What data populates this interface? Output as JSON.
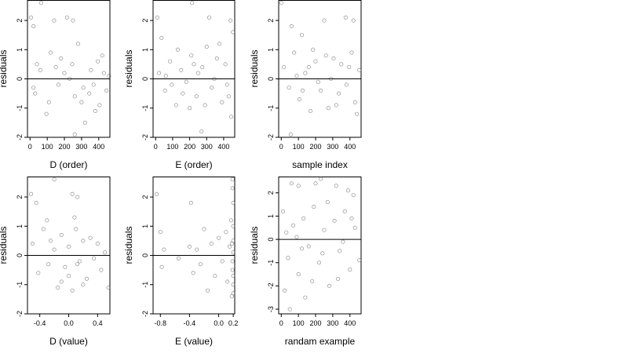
{
  "chart_data": [
    {
      "type": "scatter",
      "xlabel": "D (order)",
      "ylabel": "residuals",
      "xlim": [
        -15,
        465
      ],
      "ylim": [
        -2,
        2.7
      ],
      "xticks": [
        0,
        100,
        200,
        300,
        400
      ],
      "xtick_labels": [
        "0",
        "100",
        "200",
        "300",
        "400"
      ],
      "yticks": [
        -2,
        -1,
        0,
        1,
        2
      ],
      "ytick_labels": [
        "-2",
        "-1",
        "0",
        "1",
        "2"
      ],
      "hline": 0,
      "points": [
        [
          5,
          2.1
        ],
        [
          20,
          1.8
        ],
        [
          65,
          2.6
        ],
        [
          140,
          2.0
        ],
        [
          215,
          2.1
        ],
        [
          250,
          2.0
        ],
        [
          20,
          -0.3
        ],
        [
          60,
          0.3
        ],
        [
          95,
          -1.2
        ],
        [
          120,
          0.9
        ],
        [
          165,
          -0.2
        ],
        [
          200,
          0.2
        ],
        [
          260,
          -0.6
        ],
        [
          280,
          1.2
        ],
        [
          300,
          -0.8
        ],
        [
          320,
          -1.5
        ],
        [
          345,
          -0.5
        ],
        [
          370,
          -0.2
        ],
        [
          395,
          0.6
        ],
        [
          420,
          0.8
        ],
        [
          445,
          -0.4
        ],
        [
          460,
          0.1
        ],
        [
          30,
          -0.5
        ],
        [
          150,
          0.4
        ],
        [
          230,
          0.0
        ],
        [
          310,
          -0.3
        ],
        [
          380,
          -1.1
        ],
        [
          430,
          0.2
        ],
        [
          260,
          -1.9
        ],
        [
          180,
          0.7
        ],
        [
          110,
          -0.8
        ],
        [
          40,
          0.5
        ],
        [
          355,
          0.3
        ],
        [
          405,
          -0.9
        ],
        [
          245,
          0.5
        ]
      ]
    },
    {
      "type": "scatter",
      "xlabel": "E (order)",
      "ylabel": "residuals",
      "xlim": [
        -15,
        465
      ],
      "ylim": [
        -2,
        2.7
      ],
      "xticks": [
        0,
        100,
        200,
        300,
        400
      ],
      "xtick_labels": [
        "0",
        "100",
        "200",
        "300",
        "400"
      ],
      "yticks": [
        -2,
        -1,
        0,
        1,
        2
      ],
      "ytick_labels": [
        "-2",
        "-1",
        "0",
        "1",
        "2"
      ],
      "hline": 0,
      "points": [
        [
          10,
          2.1
        ],
        [
          35,
          1.4
        ],
        [
          215,
          2.6
        ],
        [
          315,
          2.1
        ],
        [
          440,
          2.0
        ],
        [
          455,
          1.6
        ],
        [
          20,
          0.2
        ],
        [
          55,
          -0.4
        ],
        [
          85,
          0.6
        ],
        [
          120,
          -0.9
        ],
        [
          150,
          0.3
        ],
        [
          180,
          -0.1
        ],
        [
          210,
          0.8
        ],
        [
          240,
          -0.6
        ],
        [
          275,
          0.4
        ],
        [
          300,
          1.1
        ],
        [
          330,
          -0.3
        ],
        [
          360,
          0.7
        ],
        [
          390,
          -0.8
        ],
        [
          420,
          -0.2
        ],
        [
          445,
          -1.3
        ],
        [
          270,
          -1.8
        ],
        [
          60,
          0.1
        ],
        [
          130,
          1.0
        ],
        [
          200,
          -1.0
        ],
        [
          250,
          0.2
        ],
        [
          345,
          0.0
        ],
        [
          410,
          0.5
        ],
        [
          160,
          -0.5
        ],
        [
          95,
          -0.2
        ],
        [
          375,
          1.2
        ],
        [
          225,
          0.5
        ],
        [
          290,
          -0.9
        ],
        [
          430,
          -0.6
        ]
      ]
    },
    {
      "type": "scatter",
      "xlabel": "sample index",
      "ylabel": "residuals",
      "xlim": [
        -15,
        465
      ],
      "ylim": [
        -2,
        2.7
      ],
      "xticks": [
        0,
        100,
        200,
        300,
        400
      ],
      "xtick_labels": [
        "0",
        "100",
        "200",
        "300",
        "400"
      ],
      "yticks": [
        -2,
        -1,
        0,
        1,
        2
      ],
      "ytick_labels": [
        "-2",
        "-1",
        "0",
        "1",
        "2"
      ],
      "hline": 0,
      "points": [
        [
          0,
          2.6
        ],
        [
          60,
          1.8
        ],
        [
          120,
          1.5
        ],
        [
          250,
          2.0
        ],
        [
          375,
          2.1
        ],
        [
          420,
          2.0
        ],
        [
          15,
          0.4
        ],
        [
          45,
          -0.3
        ],
        [
          75,
          0.9
        ],
        [
          105,
          -0.7
        ],
        [
          140,
          0.2
        ],
        [
          170,
          -1.1
        ],
        [
          200,
          0.6
        ],
        [
          230,
          -0.4
        ],
        [
          260,
          0.8
        ],
        [
          290,
          0.0
        ],
        [
          320,
          -0.9
        ],
        [
          350,
          0.5
        ],
        [
          380,
          -0.2
        ],
        [
          410,
          0.9
        ],
        [
          440,
          -1.2
        ],
        [
          455,
          0.3
        ],
        [
          55,
          -1.9
        ],
        [
          90,
          0.1
        ],
        [
          185,
          1.0
        ],
        [
          215,
          -0.1
        ],
        [
          305,
          0.7
        ],
        [
          335,
          -0.5
        ],
        [
          395,
          0.4
        ],
        [
          430,
          -0.8
        ],
        [
          125,
          -0.4
        ],
        [
          275,
          -1.0
        ],
        [
          160,
          0.4
        ]
      ]
    },
    {
      "type": "scatter",
      "xlabel": "D (value)",
      "ylabel": "residuals",
      "xlim": [
        -0.57,
        0.57
      ],
      "ylim": [
        -2,
        2.7
      ],
      "xticks": [
        -0.4,
        0.0,
        0.4
      ],
      "xtick_labels": [
        "-0.4",
        "0.0",
        "0.4"
      ],
      "yticks": [
        -2,
        -1,
        0,
        1,
        2
      ],
      "ytick_labels": [
        "-2",
        "-1",
        "0",
        "1",
        "2"
      ],
      "hline": 0,
      "points": [
        [
          -0.52,
          2.1
        ],
        [
          -0.45,
          1.8
        ],
        [
          -0.2,
          2.6
        ],
        [
          0.05,
          2.1
        ],
        [
          0.12,
          2.0
        ],
        [
          -0.5,
          0.4
        ],
        [
          -0.42,
          -0.6
        ],
        [
          -0.35,
          0.9
        ],
        [
          -0.28,
          -0.3
        ],
        [
          -0.2,
          0.2
        ],
        [
          -0.15,
          -1.1
        ],
        [
          -0.1,
          0.7
        ],
        [
          -0.05,
          -0.4
        ],
        [
          0.0,
          0.3
        ],
        [
          0.05,
          -1.2
        ],
        [
          0.1,
          0.9
        ],
        [
          0.15,
          -0.2
        ],
        [
          0.2,
          0.5
        ],
        [
          0.25,
          -0.8
        ],
        [
          0.3,
          0.6
        ],
        [
          0.35,
          -0.1
        ],
        [
          0.4,
          0.4
        ],
        [
          0.45,
          -0.5
        ],
        [
          0.5,
          0.1
        ],
        [
          0.55,
          -1.1
        ],
        [
          -0.3,
          1.2
        ],
        [
          -0.1,
          -0.9
        ],
        [
          0.08,
          1.3
        ],
        [
          0.2,
          -1.0
        ],
        [
          -0.25,
          0.5
        ],
        [
          0.0,
          -0.7
        ],
        [
          0.12,
          -0.3
        ]
      ]
    },
    {
      "type": "scatter",
      "xlabel": "E (value)",
      "ylabel": "residuals",
      "xlim": [
        -0.9,
        0.22
      ],
      "ylim": [
        -2,
        2.7
      ],
      "xticks": [
        -0.8,
        -0.4,
        0.0,
        0.2
      ],
      "xtick_labels": [
        "-0.8",
        "-0.4",
        "0.0",
        "0.2"
      ],
      "yticks": [
        -2,
        -1,
        0,
        1,
        2
      ],
      "ytick_labels": [
        "-2",
        "-1",
        "0",
        "1",
        "2"
      ],
      "hline": 0,
      "points": [
        [
          -0.85,
          2.1
        ],
        [
          -0.8,
          0.8
        ],
        [
          -0.78,
          -0.4
        ],
        [
          -0.75,
          0.2
        ],
        [
          -0.55,
          -0.1
        ],
        [
          -0.38,
          1.8
        ],
        [
          -0.4,
          0.3
        ],
        [
          -0.35,
          -0.6
        ],
        [
          -0.3,
          0.2
        ],
        [
          -0.25,
          -0.3
        ],
        [
          -0.2,
          0.9
        ],
        [
          -0.15,
          -1.2
        ],
        [
          -0.1,
          0.4
        ],
        [
          -0.05,
          -0.7
        ],
        [
          0.0,
          0.6
        ],
        [
          0.05,
          -0.2
        ],
        [
          0.1,
          0.8
        ],
        [
          0.12,
          -0.9
        ],
        [
          0.15,
          0.3
        ],
        [
          0.17,
          1.2
        ],
        [
          0.18,
          -1.4
        ],
        [
          0.19,
          2.6
        ],
        [
          0.19,
          -0.5
        ],
        [
          0.2,
          1.8
        ],
        [
          0.2,
          0.1
        ],
        [
          0.2,
          -1.0
        ],
        [
          0.2,
          0.5
        ],
        [
          0.19,
          -0.2
        ],
        [
          0.2,
          1.0
        ],
        [
          0.2,
          -0.7
        ],
        [
          0.18,
          0.4
        ],
        [
          0.2,
          -1.3
        ],
        [
          0.19,
          2.3
        ]
      ]
    },
    {
      "type": "scatter",
      "xlabel": "randam example",
      "ylabel": "residuals",
      "xlim": [
        -15,
        465
      ],
      "ylim": [
        -3.2,
        2.7
      ],
      "xticks": [
        0,
        100,
        200,
        300,
        400
      ],
      "xtick_labels": [
        "0",
        "100",
        "200",
        "300",
        "400"
      ],
      "yticks": [
        -3,
        -2,
        -1,
        0,
        1,
        2
      ],
      "ytick_labels": [
        "-3",
        "-2",
        "-1",
        "0",
        "1",
        "2"
      ],
      "hline": 0,
      "points": [
        [
          60,
          2.4
        ],
        [
          100,
          2.3
        ],
        [
          200,
          2.4
        ],
        [
          230,
          2.6
        ],
        [
          320,
          2.3
        ],
        [
          390,
          2.1
        ],
        [
          10,
          1.2
        ],
        [
          40,
          -0.8
        ],
        [
          70,
          0.6
        ],
        [
          100,
          -1.5
        ],
        [
          130,
          0.9
        ],
        [
          160,
          -0.3
        ],
        [
          190,
          1.4
        ],
        [
          220,
          -1.0
        ],
        [
          250,
          0.4
        ],
        [
          280,
          -2.0
        ],
        [
          310,
          0.8
        ],
        [
          340,
          -0.5
        ],
        [
          370,
          1.2
        ],
        [
          400,
          -1.3
        ],
        [
          430,
          0.5
        ],
        [
          455,
          -0.9
        ],
        [
          20,
          -2.2
        ],
        [
          50,
          -3.0
        ],
        [
          140,
          -2.5
        ],
        [
          90,
          0.1
        ],
        [
          180,
          -1.8
        ],
        [
          270,
          1.6
        ],
        [
          360,
          -0.1
        ],
        [
          420,
          1.9
        ],
        [
          30,
          0.3
        ],
        [
          240,
          -0.6
        ],
        [
          330,
          -1.7
        ],
        [
          410,
          0.9
        ],
        [
          120,
          -0.4
        ]
      ]
    }
  ]
}
